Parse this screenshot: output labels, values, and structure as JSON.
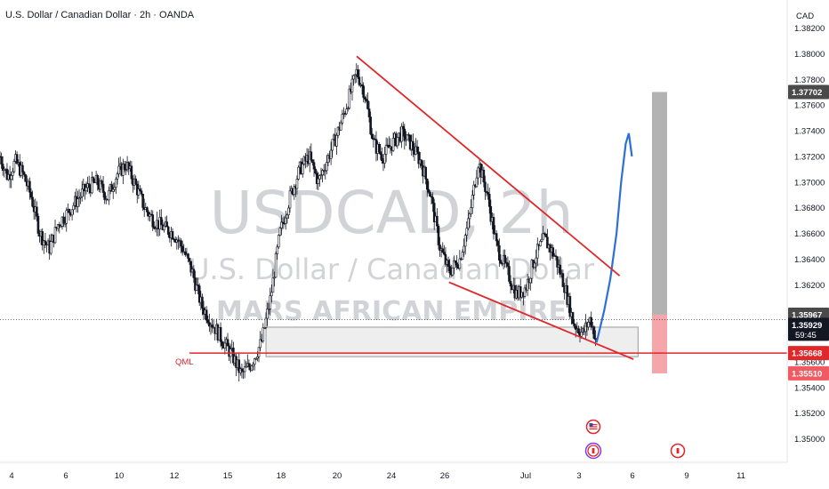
{
  "header": {
    "symbol_title": "U.S. Dollar / Canadian Dollar · 2h · OANDA",
    "currency": "CAD"
  },
  "watermark": {
    "ticker": "USDCAD, 2h",
    "name": "U.S. Dollar / Canadian Dollar",
    "author": "MARS AFRICAN EMPIRE"
  },
  "annotations": {
    "qml_label": "QML"
  },
  "price_tags": {
    "target": "1.37702",
    "box_top": "1.35967",
    "current_price": "1.35929",
    "countdown": "59:45",
    "qml_level": "1.35668",
    "stop": "1.35510"
  },
  "colors": {
    "bull": "#131722",
    "trendline": "#e0272a",
    "projection": "#2e6fd6",
    "target_zone": "#b3b3b3",
    "stop_zone": "#f4a6ab",
    "zone_fill": "#eeeeee"
  },
  "icons": [
    "us-flag-icon",
    "canada-flag-icon",
    "canada-flag-icon"
  ],
  "chart_data": {
    "type": "candlestick",
    "ylim": [
      1.349,
      1.3837
    ],
    "y_ticks": [
      "1.38200",
      "1.38000",
      "1.37800",
      "1.37600",
      "1.37400",
      "1.37200",
      "1.37000",
      "1.36800",
      "1.36600",
      "1.36400",
      "1.36200",
      "1.35800",
      "1.35600",
      "1.35400",
      "1.35200",
      "1.35000"
    ],
    "x_ticks": [
      "4",
      "6",
      "10",
      "12",
      "15",
      "18",
      "20",
      "24",
      "26",
      "Jul",
      "3",
      "6",
      "9",
      "11"
    ],
    "price_path": [
      [
        0,
        1.372
      ],
      [
        0.5,
        1.3704
      ],
      [
        1,
        1.3716
      ],
      [
        1.5,
        1.3706
      ],
      [
        2,
        1.369
      ],
      [
        2.6,
        1.366
      ],
      [
        3.2,
        1.3648
      ],
      [
        3.8,
        1.3668
      ],
      [
        4.4,
        1.3676
      ],
      [
        5,
        1.3686
      ],
      [
        5.6,
        1.3695
      ],
      [
        6.3,
        1.37
      ],
      [
        7.0,
        1.3688
      ],
      [
        7.6,
        1.3706
      ],
      [
        8.2,
        1.3714
      ],
      [
        8.8,
        1.3698
      ],
      [
        9.4,
        1.368
      ],
      [
        10,
        1.367
      ],
      [
        10.7,
        1.3664
      ],
      [
        11.3,
        1.366
      ],
      [
        11.9,
        1.3648
      ],
      [
        12.5,
        1.363
      ],
      [
        13.1,
        1.3604
      ],
      [
        13.8,
        1.359
      ],
      [
        14.4,
        1.3578
      ],
      [
        15.1,
        1.3565
      ],
      [
        15.7,
        1.355
      ],
      [
        16.3,
        1.3558
      ],
      [
        17.0,
        1.3575
      ],
      [
        17.6,
        1.361
      ],
      [
        18.2,
        1.366
      ],
      [
        18.9,
        1.369
      ],
      [
        19.5,
        1.371
      ],
      [
        20.1,
        1.372
      ],
      [
        20.7,
        1.37
      ],
      [
        21.3,
        1.3718
      ],
      [
        22.0,
        1.374
      ],
      [
        22.6,
        1.3762
      ],
      [
        23.2,
        1.3786
      ],
      [
        23.7,
        1.377
      ],
      [
        24.3,
        1.373
      ],
      [
        24.9,
        1.372
      ],
      [
        25.5,
        1.373
      ],
      [
        26.1,
        1.3738
      ],
      [
        26.7,
        1.373
      ],
      [
        27.4,
        1.3715
      ],
      [
        28.0,
        1.369
      ],
      [
        28.6,
        1.365
      ],
      [
        29.2,
        1.363
      ],
      [
        29.9,
        1.364
      ],
      [
        30.5,
        1.367
      ],
      [
        31.1,
        1.3716
      ],
      [
        31.7,
        1.369
      ],
      [
        32.3,
        1.365
      ],
      [
        33.0,
        1.363
      ],
      [
        33.6,
        1.3612
      ],
      [
        34.2,
        1.3618
      ],
      [
        34.8,
        1.3642
      ],
      [
        35.4,
        1.3656
      ],
      [
        36.1,
        1.3642
      ],
      [
        36.7,
        1.362
      ],
      [
        37.3,
        1.359
      ],
      [
        37.9,
        1.3582
      ],
      [
        38.4,
        1.3594
      ],
      [
        38.8,
        1.3575
      ]
    ],
    "projection_path": [
      [
        38.8,
        1.3575
      ],
      [
        39.3,
        1.36
      ],
      [
        39.7,
        1.3625
      ],
      [
        40.1,
        1.366
      ],
      [
        40.4,
        1.37
      ],
      [
        40.7,
        1.373
      ],
      [
        40.9,
        1.3738
      ],
      [
        41.1,
        1.372
      ]
    ],
    "trendlines": [
      {
        "x1": 23.2,
        "y1": 1.3798,
        "x2": 40.3,
        "y2": 1.3627
      },
      {
        "x1": 29.2,
        "y1": 1.3622,
        "x2": 41.2,
        "y2": 1.3562
      }
    ],
    "qml_level": 1.35668,
    "demand_zone": {
      "x1": 17.3,
      "x2": 41.5,
      "y_top": 1.3587,
      "y_bottom": 1.3564
    },
    "current_price": 1.35929,
    "position": {
      "entry": 1.35967,
      "target": 1.37702,
      "stop": 1.3551
    },
    "x_domain": [
      0,
      51.2
    ]
  }
}
